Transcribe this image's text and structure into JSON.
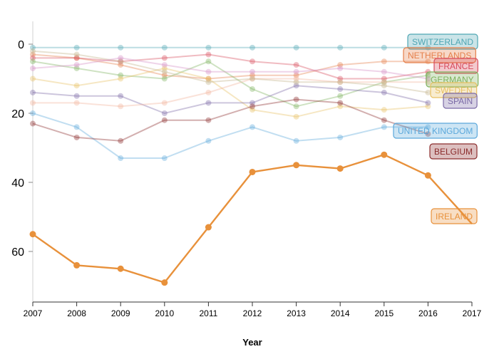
{
  "chart_data": {
    "type": "line",
    "title": "",
    "xlabel": "Year",
    "ylabel": "",
    "x": [
      2007,
      2008,
      2009,
      2010,
      2011,
      2012,
      2013,
      2014,
      2015,
      2016,
      2017
    ],
    "x_ticks": [
      "2007",
      "2008",
      "2009",
      "2010",
      "2011",
      "2012",
      "2013",
      "2014",
      "2015",
      "2016",
      "2017"
    ],
    "y_ticks": [
      "0",
      "20",
      "40",
      "60"
    ],
    "ylim": [
      -3,
      76
    ],
    "y_inverted": true,
    "grid": false,
    "legend": "inline labels at line ends",
    "series": [
      {
        "name": "SWITZERLAND",
        "color": "#4fa6b3",
        "values": [
          1,
          1,
          1,
          1,
          1,
          1,
          1,
          1,
          1,
          1,
          null
        ]
      },
      {
        "name": "NETHERLANDS",
        "color": "#e57f4a",
        "values": [
          3,
          4,
          6,
          9,
          10,
          9,
          9,
          6,
          5,
          5,
          null
        ]
      },
      {
        "name": "FRANCE",
        "color": "#d84b5d",
        "values": [
          4,
          4,
          5,
          4,
          3,
          5,
          6,
          10,
          10,
          8,
          null
        ]
      },
      {
        "name": "GERMANY",
        "color": "#7fb25f",
        "values": [
          5,
          7,
          9,
          10,
          5,
          13,
          18,
          15,
          11,
          9,
          null
        ]
      },
      {
        "name": "SWEDEN",
        "color": "#e8c062",
        "values": [
          10,
          12,
          10,
          7,
          10,
          19,
          21,
          18,
          19,
          18,
          null
        ]
      },
      {
        "name": "SPAIN",
        "color": "#7b6aa6",
        "values": [
          14,
          15,
          15,
          20,
          17,
          17,
          12,
          13,
          14,
          17,
          null
        ]
      },
      {
        "name": "UNITED KINGDOM",
        "color": "#5ba8db",
        "values": [
          20,
          24,
          33,
          33,
          28,
          24,
          28,
          27,
          24,
          24,
          null
        ]
      },
      {
        "name": "BELGIUM",
        "color": "#8b2c2c",
        "values": [
          23,
          27,
          28,
          22,
          22,
          18,
          16,
          17,
          22,
          26,
          null
        ]
      },
      {
        "name": "IRELAND",
        "color": "#e8913b",
        "values": [
          55,
          64,
          65,
          69,
          53,
          37,
          35,
          36,
          32,
          38,
          52
        ]
      },
      {
        "name": "",
        "color": "#f2b49a",
        "values": [
          17,
          17,
          18,
          17,
          14,
          10,
          10,
          11,
          11,
          11,
          null
        ]
      },
      {
        "name": "",
        "color": "#c2b28a",
        "values": [
          2,
          3,
          5,
          8,
          11,
          10,
          11,
          11,
          12,
          14,
          null
        ]
      },
      {
        "name": "",
        "color": "#d58fc4",
        "values": [
          7,
          6,
          4,
          6,
          8,
          8,
          8,
          7,
          8,
          10,
          null
        ]
      }
    ],
    "labels": [
      {
        "text": "SWITZERLAND",
        "series": "SWITZERLAND"
      },
      {
        "text": "NETHERLANDS",
        "series": "NETHERLANDS"
      },
      {
        "text": "FRANCE",
        "series": "FRANCE"
      },
      {
        "text": "GERMANY",
        "series": "GERMANY"
      },
      {
        "text": "SWEDEN",
        "series": "SWEDEN"
      },
      {
        "text": "SPAIN",
        "series": "SPAIN"
      },
      {
        "text": "UNITED KINGDOM",
        "series": "UNITED KINGDOM"
      },
      {
        "text": "BELGIUM",
        "series": "BELGIUM"
      },
      {
        "text": "IRELAND",
        "series": "IRELAND"
      }
    ]
  }
}
